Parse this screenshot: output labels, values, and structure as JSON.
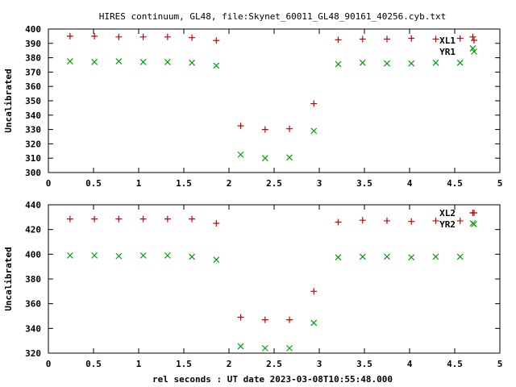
{
  "title": "HIRES continuum, GL48, file:Skynet_60011_GL48_90161_40256.cyb.txt",
  "colors": {
    "XL": "#cc0000",
    "YR": "#00a000",
    "axis": "#000000"
  },
  "chart_data": [
    {
      "type": "scatter",
      "ylabel": "Uncalibrated",
      "xlabel": "",
      "xlim": [
        0,
        5
      ],
      "ylim": [
        300,
        400
      ],
      "xticks": [
        "0",
        "0.5",
        "1",
        "1.5",
        "2",
        "2.5",
        "3",
        "3.5",
        "4",
        "4.5",
        "5"
      ],
      "yticks": [
        "300",
        "310",
        "320",
        "330",
        "340",
        "350",
        "360",
        "370",
        "380",
        "390",
        "400"
      ],
      "legend_position": "top-right",
      "x": [
        0.24,
        0.51,
        0.78,
        1.05,
        1.32,
        1.59,
        1.86,
        2.13,
        2.4,
        2.67,
        2.94,
        3.21,
        3.48,
        3.75,
        4.02,
        4.29,
        4.56,
        4.7
      ],
      "series": [
        {
          "name": "XL1",
          "marker": "plus",
          "color": "#cc0000",
          "values": [
            395,
            395,
            394.5,
            394.5,
            394.5,
            394,
            392,
            332.5,
            330,
            330.5,
            348,
            392.5,
            393,
            393,
            393.5,
            393,
            393.5,
            394.5
          ]
        },
        {
          "name": "YR1",
          "marker": "cross",
          "color": "#00a000",
          "values": [
            377.5,
            377,
            377.5,
            377,
            377,
            376.5,
            374.5,
            312.5,
            310,
            310.5,
            329,
            375.5,
            376.5,
            376,
            376,
            376.5,
            376.5,
            386.5
          ]
        }
      ]
    },
    {
      "type": "scatter",
      "ylabel": "Uncalibrated",
      "xlabel": "rel seconds : UT date 2023-03-08T10:55:48.000",
      "xlim": [
        0,
        5
      ],
      "ylim": [
        320,
        440
      ],
      "xticks": [
        "0",
        "0.5",
        "1",
        "1.5",
        "2",
        "2.5",
        "3",
        "3.5",
        "4",
        "4.5",
        "5"
      ],
      "yticks": [
        "320",
        "340",
        "360",
        "380",
        "400",
        "420",
        "440"
      ],
      "legend_position": "top-right",
      "x": [
        0.24,
        0.51,
        0.78,
        1.05,
        1.32,
        1.59,
        1.86,
        2.13,
        2.4,
        2.67,
        2.94,
        3.21,
        3.48,
        3.75,
        4.02,
        4.29,
        4.56,
        4.7
      ],
      "series": [
        {
          "name": "XL2",
          "marker": "plus",
          "color": "#cc0000",
          "values": [
            428.5,
            428.5,
            428.5,
            428.5,
            428.5,
            428.5,
            425,
            349,
            347,
            347,
            370,
            426,
            427.5,
            427,
            426.5,
            427,
            427,
            433.5
          ]
        },
        {
          "name": "YR2",
          "marker": "cross",
          "color": "#00a000",
          "values": [
            399,
            399,
            398.5,
            399,
            399,
            398,
            395.5,
            325.5,
            324,
            324,
            344.5,
            397.5,
            398,
            398,
            397.5,
            398,
            398,
            425
          ]
        }
      ]
    }
  ]
}
